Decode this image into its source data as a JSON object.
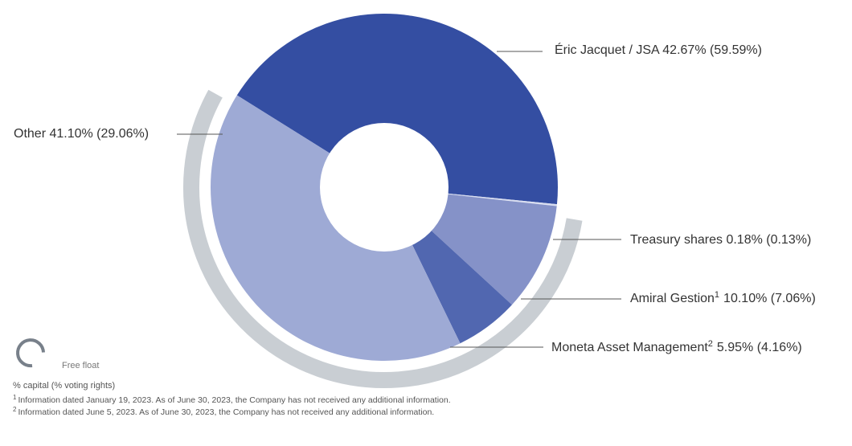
{
  "chart_data": {
    "type": "donut",
    "unit": "% capital (% voting rights)",
    "slices": [
      {
        "name": "Éric Jacquet / JSA",
        "sup": "",
        "capital": 42.67,
        "voting": 59.59,
        "color": "#344ea2",
        "label_text": "Éric Jacquet / JSA 42.67% (59.59%)"
      },
      {
        "name": "Treasury shares",
        "sup": "",
        "capital": 0.18,
        "voting": 0.13,
        "color": "#d9def0",
        "label_text": "Treasury shares 0.18% (0.13%)"
      },
      {
        "name": "Amiral Gestion",
        "sup": "1",
        "capital": 10.1,
        "voting": 7.06,
        "color": "#8592c8",
        "label_text": "10.10% (7.06%)"
      },
      {
        "name": "Moneta Asset Management",
        "sup": "2",
        "capital": 5.95,
        "voting": 4.16,
        "color": "#5167b0",
        "label_text": "5.95% (4.16%)"
      },
      {
        "name": "Other",
        "sup": "",
        "capital": 41.1,
        "voting": 29.06,
        "color": "#9eaad5",
        "label_text": "Other 41.10% (29.06%)"
      }
    ],
    "free_float_color": "#c9ced3"
  },
  "legend": {
    "free_float": "Free float"
  },
  "caption": "% capital (% voting rights)",
  "notes": [
    {
      "sup": "1",
      "text": "Information dated January 19, 2023. As of June 30, 2023, the Company has not received any additional information."
    },
    {
      "sup": "2",
      "text": "Information dated June 5, 2023. As of June 30, 2023, the Company has not received any additional information."
    }
  ]
}
